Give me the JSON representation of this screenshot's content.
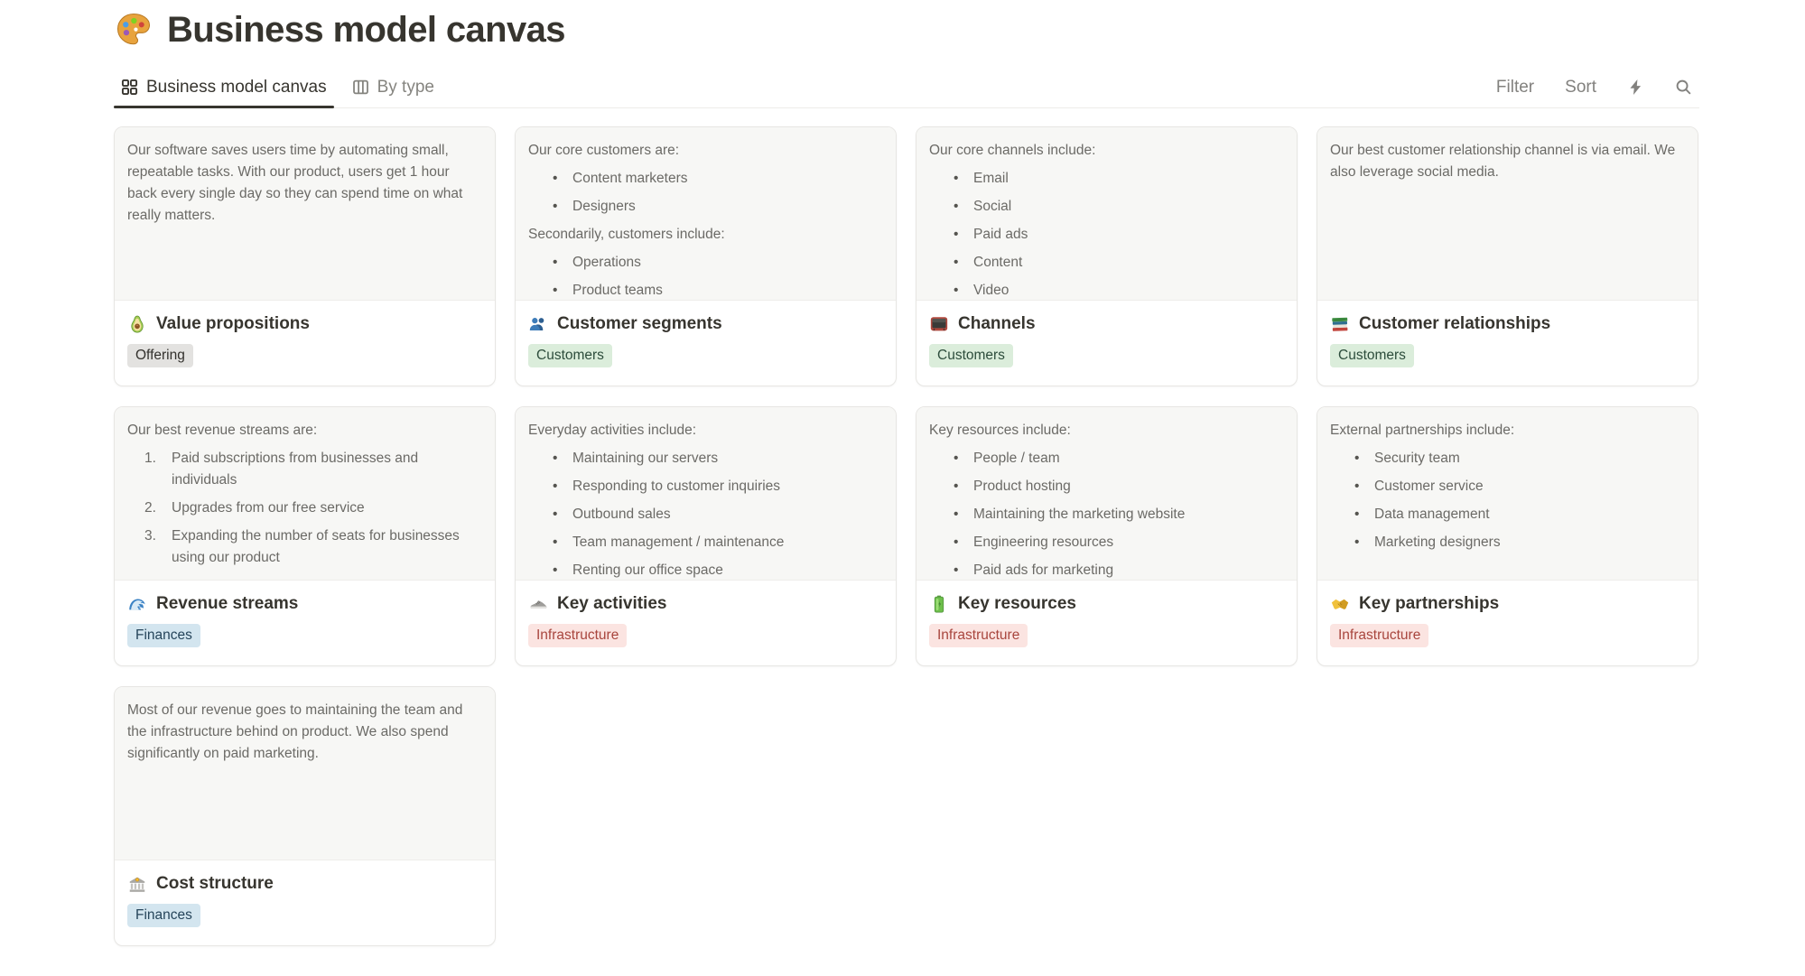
{
  "page": {
    "icon": "palette-icon",
    "title": "Business model canvas"
  },
  "toolbar": {
    "tabs": [
      {
        "icon": "gallery-view-icon",
        "label": "Business model canvas",
        "active": true
      },
      {
        "icon": "board-view-icon",
        "label": "By type",
        "active": false
      }
    ],
    "controls": {
      "filter_label": "Filter",
      "sort_label": "Sort",
      "bolt_icon": "lightning-icon",
      "search_icon": "search-icon"
    }
  },
  "tag_styles": {
    "gray": {
      "bg": "#E3E2E0",
      "text": "#32302C"
    },
    "green": {
      "bg": "#DBEDDB",
      "text": "#2C4C3B"
    },
    "red": {
      "bg": "#FBE4E1",
      "text": "#A8453D"
    },
    "blue": {
      "bg": "#D3E5EF",
      "text": "#25445A"
    }
  },
  "cards": [
    {
      "icon": "avocado-icon",
      "title": "Value propositions",
      "tag": {
        "label": "Offering",
        "color": "gray"
      },
      "content": [
        {
          "type": "p",
          "text": "Our software saves users time by automating small, repeatable tasks. With our product, users get 1 hour back every single day so they can spend time on what really matters."
        }
      ]
    },
    {
      "icon": "people-icon",
      "title": "Customer segments",
      "tag": {
        "label": "Customers",
        "color": "green"
      },
      "content": [
        {
          "type": "p",
          "text": "Our core customers are:"
        },
        {
          "type": "ul",
          "items": [
            "Content marketers",
            "Designers"
          ]
        },
        {
          "type": "p",
          "text": "Secondarily, customers include:"
        },
        {
          "type": "ul",
          "items": [
            "Operations",
            "Product teams"
          ]
        }
      ]
    },
    {
      "icon": "tv-icon",
      "title": "Channels",
      "tag": {
        "label": "Customers",
        "color": "green"
      },
      "content": [
        {
          "type": "p",
          "text": "Our core channels include:"
        },
        {
          "type": "ul",
          "items": [
            "Email",
            "Social",
            "Paid ads",
            "Content",
            "Video"
          ]
        }
      ]
    },
    {
      "icon": "books-icon",
      "title": "Customer relationships",
      "tag": {
        "label": "Customers",
        "color": "green"
      },
      "content": [
        {
          "type": "p",
          "text": "Our best customer relationship channel is via email. We also leverage social media."
        }
      ]
    },
    {
      "icon": "wave-icon",
      "title": "Revenue streams",
      "tag": {
        "label": "Finances",
        "color": "blue"
      },
      "content": [
        {
          "type": "p",
          "text": "Our best revenue streams are:"
        },
        {
          "type": "ol",
          "items": [
            "Paid subscriptions from businesses and individuals",
            "Upgrades from our free service",
            "Expanding the number of seats for businesses using our product"
          ]
        }
      ]
    },
    {
      "icon": "shoe-icon",
      "title": "Key activities",
      "tag": {
        "label": "Infrastructure",
        "color": "red"
      },
      "content": [
        {
          "type": "p",
          "text": "Everyday activities include:"
        },
        {
          "type": "ul",
          "items": [
            "Maintaining our servers",
            "Responding to customer inquiries",
            "Outbound sales",
            "Team management / maintenance",
            "Renting our office space"
          ]
        }
      ]
    },
    {
      "icon": "battery-icon",
      "title": "Key resources",
      "tag": {
        "label": "Infrastructure",
        "color": "red"
      },
      "content": [
        {
          "type": "p",
          "text": "Key resources include:"
        },
        {
          "type": "ul",
          "items": [
            "People / team",
            "Product hosting",
            "Maintaining the marketing website",
            "Engineering resources",
            "Paid ads for marketing"
          ]
        }
      ]
    },
    {
      "icon": "handshake-icon",
      "title": "Key partnerships",
      "tag": {
        "label": "Infrastructure",
        "color": "red"
      },
      "content": [
        {
          "type": "p",
          "text": "External partnerships include:"
        },
        {
          "type": "ul",
          "items": [
            "Security team",
            "Customer service",
            "Data management",
            "Marketing designers"
          ]
        }
      ]
    },
    {
      "icon": "bank-icon",
      "title": "Cost structure",
      "tag": {
        "label": "Finances",
        "color": "blue"
      },
      "content": [
        {
          "type": "p",
          "text": "Most of our revenue goes to maintaining the team and the infrastructure behind on product. We also spend significantly on paid marketing."
        }
      ]
    }
  ]
}
